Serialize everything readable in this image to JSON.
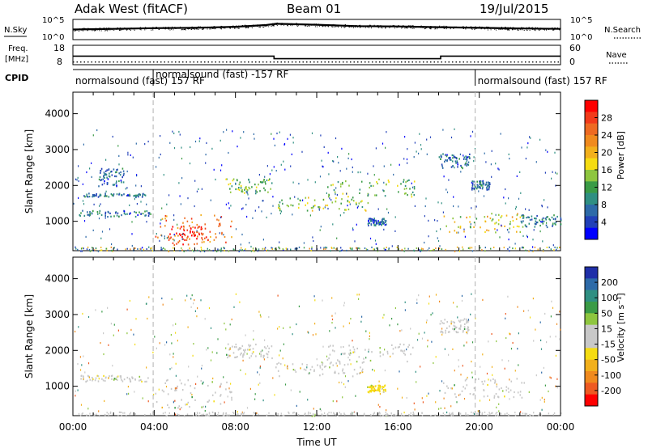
{
  "header": {
    "station": "Adak West (fitACF)",
    "beam": "Beam 01",
    "date": "19/Jul/2015"
  },
  "top_panels": {
    "nsky_label": "N.Sky",
    "nsearch_label": "N.Search",
    "noise_ticks": [
      "10^5",
      "10^0"
    ],
    "freq_label_1": "Freq.",
    "freq_label_2": "[MHz]",
    "freq_ticks": [
      "18",
      "8"
    ],
    "nave_label": "Nave",
    "nave_ticks": [
      "60",
      "0"
    ],
    "cpid_label": "CPID",
    "cpid_segments": [
      {
        "start_h": 0,
        "end_h": 3.95,
        "text": "normalsound (fast) 157 RF"
      },
      {
        "start_h": 3.95,
        "end_h": 19.8,
        "text": "normalsound (fast) -157 RF"
      },
      {
        "start_h": 19.8,
        "end_h": 24,
        "text": "normalsound (fast) 157 RF"
      }
    ]
  },
  "power_colorbar": {
    "title": "Power [dB]",
    "ticks": [
      "28",
      "24",
      "20",
      "16",
      "12",
      "8",
      "4"
    ],
    "colors": [
      "#ff0000",
      "#f23a1a",
      "#ee6a22",
      "#f08a1e",
      "#f2b01c",
      "#f5dc12",
      "#8ec63f",
      "#3a9b46",
      "#2f8f82",
      "#2d6aa8",
      "#2140b8",
      "#0000ff"
    ]
  },
  "velocity_colorbar": {
    "title": "Velocity [m s⁻¹]",
    "ticks": [
      "200",
      "100",
      "50",
      "15",
      "-15",
      "-50",
      "-100",
      "-200"
    ],
    "colors": [
      "#1f2fa8",
      "#2d6aa8",
      "#2f8f82",
      "#3a9b46",
      "#8ec63f",
      "#c8c8c8",
      "#c8c8c8",
      "#f5dc12",
      "#f2b01c",
      "#f08a1e",
      "#ee5a22",
      "#ff0000"
    ]
  },
  "chart_data": [
    {
      "type": "line",
      "title": "N.Sky / N.Search",
      "x_range_h": [
        0,
        24
      ],
      "y_scale": "log",
      "y_ticks": [
        "10^0",
        "10^5"
      ],
      "series": [
        {
          "name": "N.Sky",
          "x": [
            0,
            2,
            4,
            6,
            8,
            9.5,
            10,
            12,
            14,
            16,
            18,
            20,
            22,
            24
          ],
          "y_log": [
            2.5,
            2.7,
            2.9,
            3.0,
            3.3,
            3.8,
            4.2,
            3.9,
            3.5,
            3.4,
            3.2,
            3.0,
            2.8,
            2.7
          ]
        }
      ]
    },
    {
      "type": "line",
      "title": "Freq. [MHz] / Nave",
      "x_range_h": [
        0,
        24
      ],
      "ylim_freq": [
        8,
        18
      ],
      "series": [
        {
          "name": "Freq.",
          "x": [
            0,
            9.9,
            9.9,
            18.1,
            18.1,
            24
          ],
          "y": [
            12.3,
            12.3,
            10.7,
            10.7,
            12.3,
            12.3
          ]
        },
        {
          "name": "Nave",
          "x": [
            0,
            24
          ],
          "y": [
            4,
            4
          ]
        }
      ]
    },
    {
      "type": "heatmap",
      "title": "Power [dB]",
      "xlabel": "",
      "ylabel": "Slant Range [km]",
      "x_range_h": [
        0,
        24
      ],
      "ylim": [
        180,
        4600
      ],
      "y_ticks": [
        1000,
        2000,
        3000,
        4000
      ],
      "zlim": [
        0,
        30
      ],
      "regions": [
        {
          "t0": 0.3,
          "t1": 3.8,
          "r0": 1150,
          "r1": 1320,
          "z": 6
        },
        {
          "t0": 0.5,
          "t1": 3.6,
          "r0": 1700,
          "r1": 1800,
          "z": 6
        },
        {
          "t0": 1.2,
          "t1": 2.5,
          "r0": 2000,
          "r1": 2500,
          "z": 5
        },
        {
          "t0": 4.0,
          "t1": 7.8,
          "r0": 420,
          "r1": 1200,
          "z": 24
        },
        {
          "t0": 4.6,
          "t1": 6.6,
          "r0": 350,
          "r1": 900,
          "z": 28
        },
        {
          "t0": 7.5,
          "t1": 9.8,
          "r0": 1800,
          "r1": 2200,
          "z": 12
        },
        {
          "t0": 9.8,
          "t1": 14.5,
          "r0": 1300,
          "r1": 1700,
          "z": 14
        },
        {
          "t0": 12.5,
          "t1": 16.8,
          "r0": 1700,
          "r1": 2200,
          "z": 12
        },
        {
          "t0": 14.5,
          "t1": 15.4,
          "r0": 900,
          "r1": 1100,
          "z": 5
        },
        {
          "t0": 18.2,
          "t1": 22.2,
          "r0": 700,
          "r1": 1250,
          "z": 16
        },
        {
          "t0": 18.0,
          "t1": 19.5,
          "r0": 2500,
          "r1": 2900,
          "z": 6
        },
        {
          "t0": 19.6,
          "t1": 20.5,
          "r0": 1900,
          "r1": 2150,
          "z": 6
        },
        {
          "t0": 22.0,
          "t1": 24.0,
          "r0": 850,
          "r1": 1200,
          "z": 7
        }
      ]
    },
    {
      "type": "heatmap",
      "title": "Velocity [m s⁻¹]",
      "xlabel": "Time UT",
      "ylabel": "Slant Range [km]",
      "x_range_h": [
        0,
        24
      ],
      "ylim": [
        180,
        4600
      ],
      "y_ticks": [
        1000,
        2000,
        3000,
        4000
      ],
      "x_ticks": [
        "00:00",
        "04:00",
        "08:00",
        "12:00",
        "16:00",
        "20:00",
        "00:00"
      ],
      "zlim": [
        -250,
        250
      ],
      "regions": [
        {
          "t0": 0.3,
          "t1": 3.8,
          "r0": 1150,
          "r1": 1320,
          "z": 0
        },
        {
          "t0": 4.0,
          "t1": 7.8,
          "r0": 420,
          "r1": 1200,
          "z": 0
        },
        {
          "t0": 7.5,
          "t1": 9.8,
          "r0": 1800,
          "r1": 2200,
          "z": 0
        },
        {
          "t0": 9.8,
          "t1": 14.5,
          "r0": 1300,
          "r1": 1700,
          "z": 0
        },
        {
          "t0": 12.5,
          "t1": 16.8,
          "r0": 1700,
          "r1": 2200,
          "z": 5
        },
        {
          "t0": 14.5,
          "t1": 15.4,
          "r0": 850,
          "r1": 1050,
          "z": -60
        },
        {
          "t0": 18.2,
          "t1": 22.2,
          "r0": 700,
          "r1": 1250,
          "z": 0
        },
        {
          "t0": 18.0,
          "t1": 19.5,
          "r0": 2500,
          "r1": 2900,
          "z": 0
        }
      ]
    }
  ]
}
